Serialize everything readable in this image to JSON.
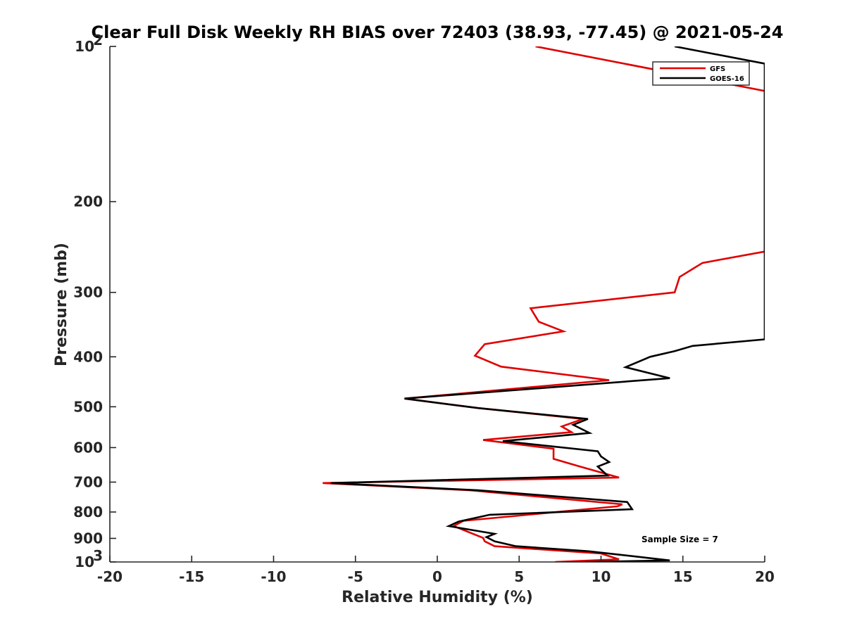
{
  "chart_data": {
    "type": "line",
    "title": "Clear Full Disk Weekly RH BIAS over 72403 (38.93, -77.45) @ 2021-05-24",
    "xlabel": "Relative Humidity (%)",
    "ylabel": "Pressure (mb)",
    "xlim": [
      -20,
      20
    ],
    "ylim": [
      100,
      1000
    ],
    "y_scale": "log",
    "y_reversed": true,
    "grid": false,
    "legend_position": "top-right",
    "x_ticks": [
      -20,
      -15,
      -10,
      -5,
      0,
      5,
      10,
      15,
      20
    ],
    "x_tick_labels": [
      "-20",
      "-15",
      "-10",
      "-5",
      "0",
      "5",
      "10",
      "15",
      "20"
    ],
    "y_ticks": [
      100,
      200,
      300,
      400,
      500,
      600,
      700,
      800,
      900,
      1000
    ],
    "y_tick_labels": [
      {
        "base": "10",
        "exp": "2"
      },
      {
        "base": "200",
        "exp": ""
      },
      {
        "base": "300",
        "exp": ""
      },
      {
        "base": "400",
        "exp": ""
      },
      {
        "base": "500",
        "exp": ""
      },
      {
        "base": "600",
        "exp": ""
      },
      {
        "base": "700",
        "exp": ""
      },
      {
        "base": "800",
        "exp": ""
      },
      {
        "base": "900",
        "exp": ""
      },
      {
        "base": "10",
        "exp": "3"
      }
    ],
    "annotation": "Sample Size = 7",
    "series": [
      {
        "name": "GFS",
        "color": "#e00000",
        "points": [
          [
            6,
            100
          ],
          [
            20,
            122
          ],
          [
            20,
            250
          ],
          [
            16.2,
            263
          ],
          [
            14.8,
            280
          ],
          [
            14.5,
            300
          ],
          [
            5.7,
            322
          ],
          [
            6.2,
            342
          ],
          [
            7.7,
            357
          ],
          [
            2.9,
            378
          ],
          [
            2.3,
            398
          ],
          [
            3.9,
            418
          ],
          [
            10.5,
            444
          ],
          [
            -2.0,
            482
          ],
          [
            2.5,
            503
          ],
          [
            8.9,
            528
          ],
          [
            7.6,
            546
          ],
          [
            8.2,
            560
          ],
          [
            2.8,
            580
          ],
          [
            7.1,
            603
          ],
          [
            7.1,
            631
          ],
          [
            8.7,
            653
          ],
          [
            11.1,
            686
          ],
          [
            -7.0,
            703
          ],
          [
            2.0,
            726
          ],
          [
            11.3,
            773
          ],
          [
            11.0,
            780
          ],
          [
            1.6,
            832
          ],
          [
            1.0,
            852
          ],
          [
            2.8,
            898
          ],
          [
            2.9,
            912
          ],
          [
            3.5,
            932
          ],
          [
            10.0,
            963
          ],
          [
            11.1,
            988
          ],
          [
            7.2,
            1000
          ]
        ]
      },
      {
        "name": "GOES-16",
        "color": "#000000",
        "points": [
          [
            14.5,
            100
          ],
          [
            20,
            108
          ],
          [
            20,
            370
          ],
          [
            15.6,
            381
          ],
          [
            14.5,
            390
          ],
          [
            13.0,
            400
          ],
          [
            11.5,
            419
          ],
          [
            14.2,
            440
          ],
          [
            -2.0,
            482
          ],
          [
            2.5,
            503
          ],
          [
            9.2,
            528
          ],
          [
            8.3,
            542
          ],
          [
            9.3,
            562
          ],
          [
            4.0,
            583
          ],
          [
            9.8,
            610
          ],
          [
            10.0,
            624
          ],
          [
            10.5,
            640
          ],
          [
            9.8,
            653
          ],
          [
            10.4,
            680
          ],
          [
            -6.5,
            703
          ],
          [
            2.5,
            726
          ],
          [
            11.6,
            765
          ],
          [
            11.9,
            790
          ],
          [
            3.2,
            810
          ],
          [
            1.3,
            835
          ],
          [
            0.7,
            852
          ],
          [
            3.5,
            882
          ],
          [
            3.0,
            895
          ],
          [
            3.5,
            912
          ],
          [
            4.8,
            932
          ],
          [
            9.2,
            953
          ],
          [
            12.0,
            975
          ],
          [
            14.2,
            993
          ],
          [
            9.0,
            1000
          ]
        ]
      }
    ]
  }
}
